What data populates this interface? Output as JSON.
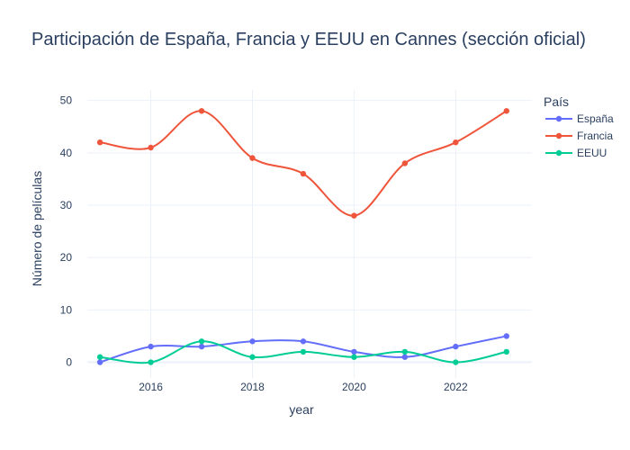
{
  "chart_data": {
    "type": "line",
    "title": "Participación de España, Francia y EEUU en Cannes (sección oficial)",
    "xlabel": "year",
    "ylabel": "Número de películas",
    "x": [
      2015,
      2016,
      2017,
      2018,
      2019,
      2020,
      2021,
      2022,
      2023
    ],
    "xlim": [
      2014.75,
      2023.5
    ],
    "ylim": [
      -3,
      52
    ],
    "x_ticks": [
      "2016",
      "2018",
      "2020",
      "2022"
    ],
    "x_tick_values": [
      2016,
      2018,
      2020,
      2022
    ],
    "y_ticks": [
      "0",
      "10",
      "20",
      "30",
      "40",
      "50"
    ],
    "y_tick_values": [
      0,
      10,
      20,
      30,
      40,
      50
    ],
    "grid": true,
    "legend": {
      "title": "País",
      "placement": "right"
    },
    "series": [
      {
        "name": "España",
        "color": "#636efa",
        "values": [
          0,
          3,
          3,
          4,
          4,
          2,
          1,
          3,
          5
        ]
      },
      {
        "name": "Francia",
        "color": "#ef553b",
        "values": [
          42,
          41,
          48,
          39,
          36,
          28,
          38,
          42,
          48
        ]
      },
      {
        "name": "EEUU",
        "color": "#00cc96",
        "values": [
          1,
          0,
          4,
          1,
          2,
          1,
          2,
          0,
          2
        ]
      }
    ]
  }
}
